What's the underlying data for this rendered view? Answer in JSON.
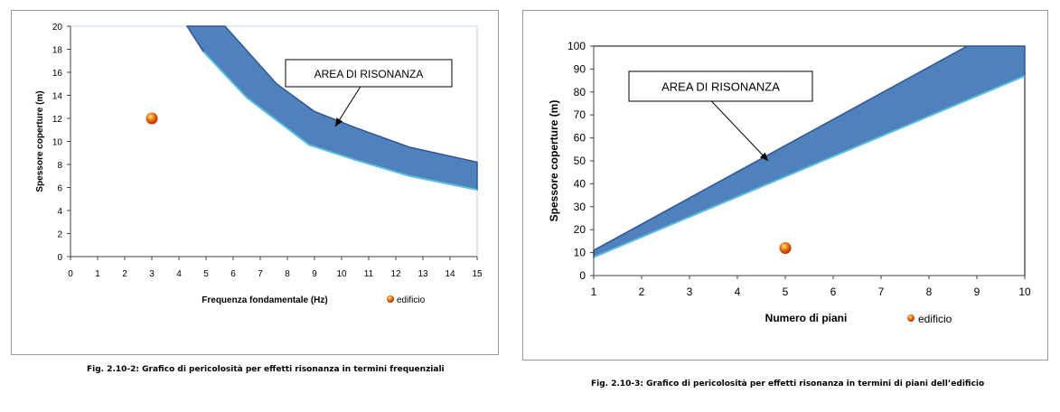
{
  "chart_data": [
    {
      "type": "area",
      "xlabel": "Frequenza fondamentale (Hz)",
      "ylabel": "Spessore coperture (m)",
      "xlim": [
        0,
        15
      ],
      "ylim": [
        0,
        20
      ],
      "x_ticks": [
        "0",
        "1",
        "2",
        "3",
        "4",
        "5",
        "6",
        "7",
        "8",
        "9",
        "10",
        "11",
        "12",
        "13",
        "14",
        "15"
      ],
      "y_ticks": [
        "0",
        "2",
        "4",
        "6",
        "8",
        "10",
        "12",
        "14",
        "16",
        "18",
        "20"
      ],
      "grid": false,
      "legend_position": "bottom-right",
      "series": [
        {
          "name": "edificio",
          "type": "scatter",
          "x": [
            3
          ],
          "y": [
            12
          ]
        }
      ],
      "resonance_area": {
        "upper": {
          "x": [
            4.3,
            5.7,
            7.6,
            9.0,
            10.5,
            12.5,
            15.0
          ],
          "y": [
            20,
            20,
            15,
            12.6,
            11.2,
            9.5,
            8.2
          ]
        },
        "lower": {
          "x": [
            4.9,
            6.5,
            8.8,
            10.5,
            12.5,
            15.0
          ],
          "y": [
            17.8,
            13.8,
            9.7,
            8.4,
            7.0,
            5.8
          ]
        }
      },
      "annotation": "AREA DI RISONANZA",
      "caption": "Fig. 2.10-2: Grafico di pericolosità per effetti risonanza in termini frequenziali"
    },
    {
      "type": "area",
      "xlabel": "Numero di piani",
      "ylabel": "Spessore coperture (m)",
      "xlim": [
        1,
        10
      ],
      "ylim": [
        0,
        100
      ],
      "x_ticks": [
        "1",
        "2",
        "3",
        "4",
        "5",
        "6",
        "7",
        "8",
        "9",
        "10"
      ],
      "y_ticks": [
        "0",
        "10",
        "20",
        "30",
        "40",
        "50",
        "60",
        "70",
        "80",
        "90",
        "100"
      ],
      "grid": false,
      "legend_position": "bottom-right",
      "series": [
        {
          "name": "edificio",
          "type": "scatter",
          "x": [
            5
          ],
          "y": [
            12
          ]
        }
      ],
      "resonance_area": {
        "upper": {
          "x": [
            1,
            8.8,
            10
          ],
          "y": [
            11,
            100,
            100
          ]
        },
        "lower": {
          "x": [
            1,
            10
          ],
          "y": [
            8,
            87
          ]
        }
      },
      "annotation": "AREA DI RISONANZA",
      "caption": "Fig. 2.10-3: Grafico di pericolosità per effetti risonanza in termini di piani dell’edificio"
    }
  ],
  "colors": {
    "area_fill": "#4f81bd",
    "area_edge": "#2f5597",
    "lower_edge": "#5bc0de",
    "point": "#e36c09",
    "axis": "#404040",
    "frame": "#9a9a9a"
  }
}
